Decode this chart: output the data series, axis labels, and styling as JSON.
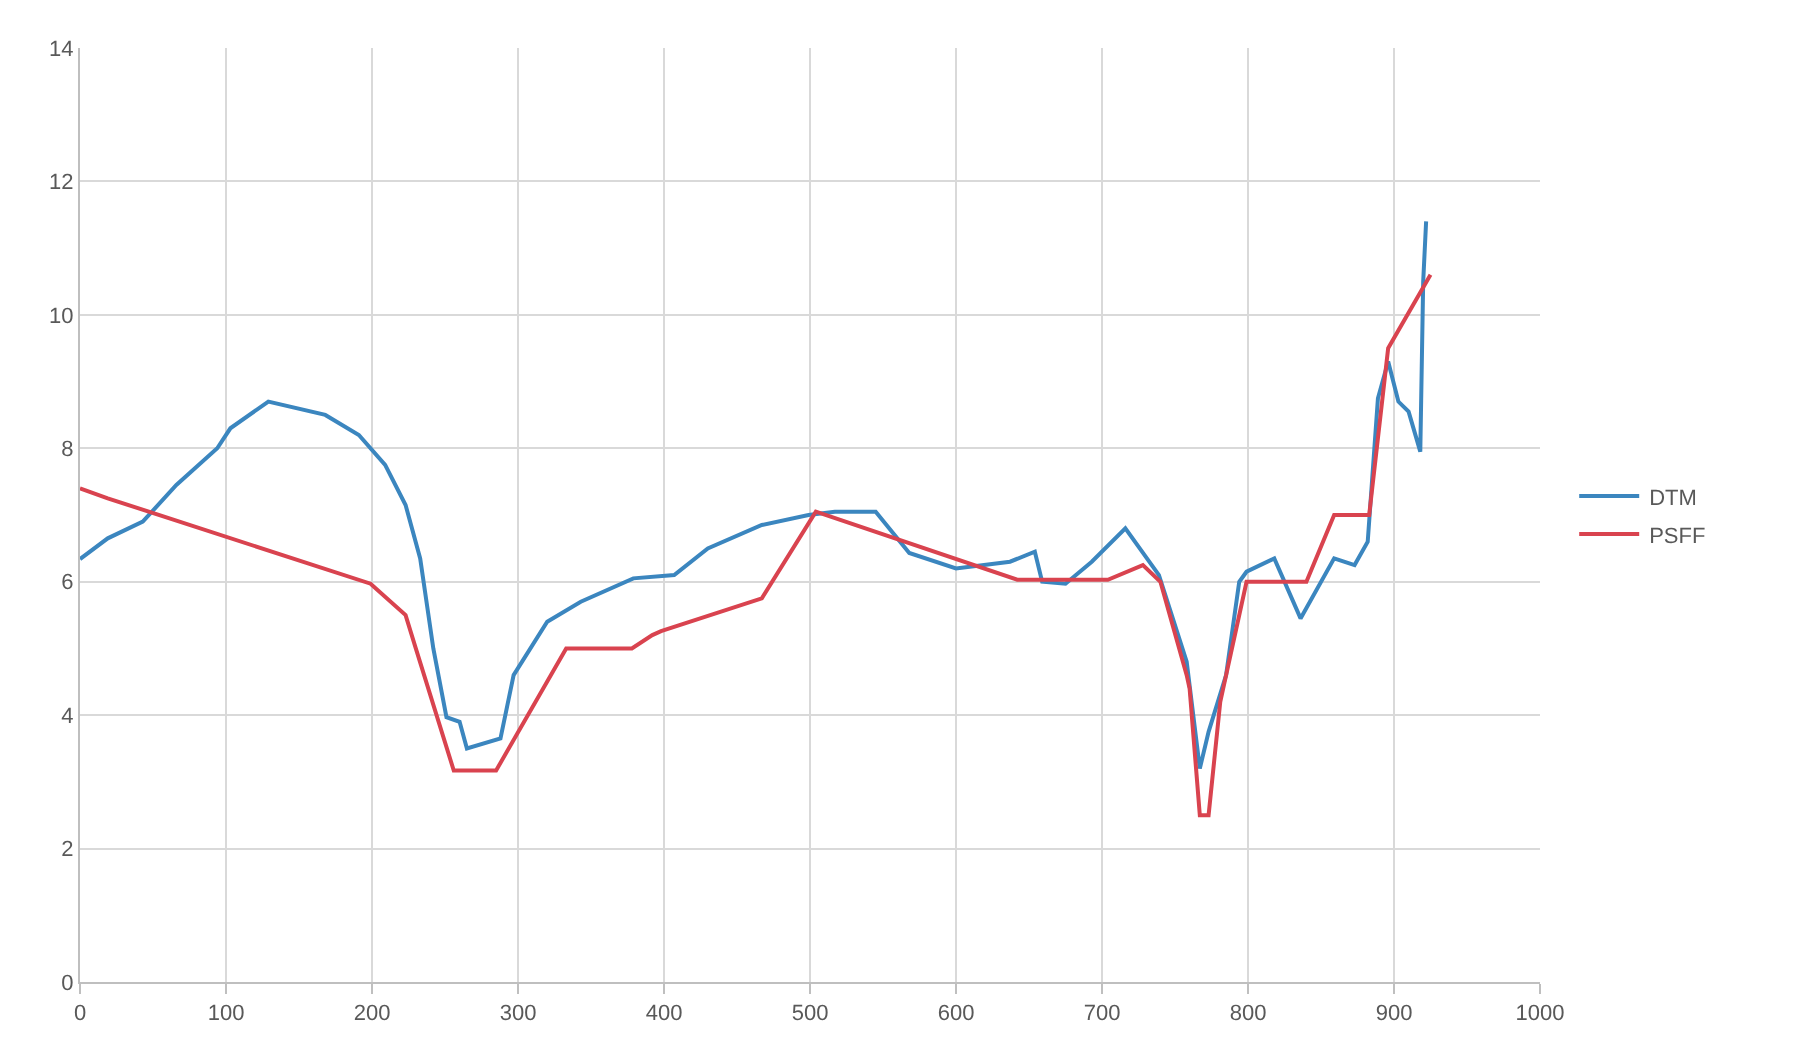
{
  "chart_data": {
    "type": "line",
    "xlim": [
      0,
      1000
    ],
    "ylim": [
      0,
      14
    ],
    "xticks": [
      0,
      100,
      200,
      300,
      400,
      500,
      600,
      700,
      800,
      900,
      1000
    ],
    "yticks": [
      0,
      2,
      4,
      6,
      8,
      10,
      12,
      14
    ],
    "grid": true,
    "legend": "right",
    "marker": "none",
    "line_style": "solid",
    "series": [
      {
        "name": "DTM",
        "color": "#3b86bf",
        "x": [
          0,
          19,
          43,
          66,
          94,
          103,
          129,
          168,
          191,
          209,
          223,
          233,
          242,
          251,
          260,
          265,
          288,
          297,
          320,
          343,
          379,
          407,
          430,
          467,
          499,
          517,
          545,
          568,
          600,
          637,
          654,
          659,
          675,
          693,
          716,
          739,
          758,
          767,
          773,
          785,
          794,
          799,
          818,
          836,
          859,
          873,
          882,
          889,
          896,
          903,
          910,
          918,
          920,
          922
        ],
        "values": [
          6.34,
          6.65,
          6.9,
          7.45,
          8.0,
          8.3,
          8.7,
          8.5,
          8.2,
          7.75,
          7.15,
          6.35,
          5.0,
          3.97,
          3.9,
          3.5,
          3.65,
          4.6,
          5.4,
          5.7,
          6.05,
          6.1,
          6.5,
          6.85,
          7.0,
          7.05,
          7.05,
          6.43,
          6.2,
          6.3,
          6.45,
          6.0,
          5.97,
          6.3,
          6.8,
          6.1,
          4.8,
          3.2,
          3.75,
          4.6,
          6.0,
          6.15,
          6.35,
          5.45,
          6.35,
          6.25,
          6.6,
          8.75,
          9.3,
          8.7,
          8.55,
          7.95,
          10.5,
          11.4
        ]
      },
      {
        "name": "PSFF",
        "color": "#d9434f",
        "x": [
          0,
          19,
          199,
          223,
          230,
          256,
          285,
          333,
          378,
          392,
          398,
          467,
          504,
          642,
          704,
          728,
          740,
          758,
          760,
          767,
          773,
          781,
          799,
          840,
          859,
          883,
          896,
          925
        ],
        "values": [
          7.4,
          7.25,
          5.97,
          5.5,
          5.0,
          3.17,
          3.17,
          5.0,
          5.0,
          5.2,
          5.26,
          5.75,
          7.05,
          6.03,
          6.03,
          6.25,
          6.0,
          4.6,
          4.4,
          2.5,
          2.5,
          4.2,
          6.0,
          6.0,
          7.0,
          7.0,
          9.5,
          10.6
        ]
      }
    ]
  }
}
